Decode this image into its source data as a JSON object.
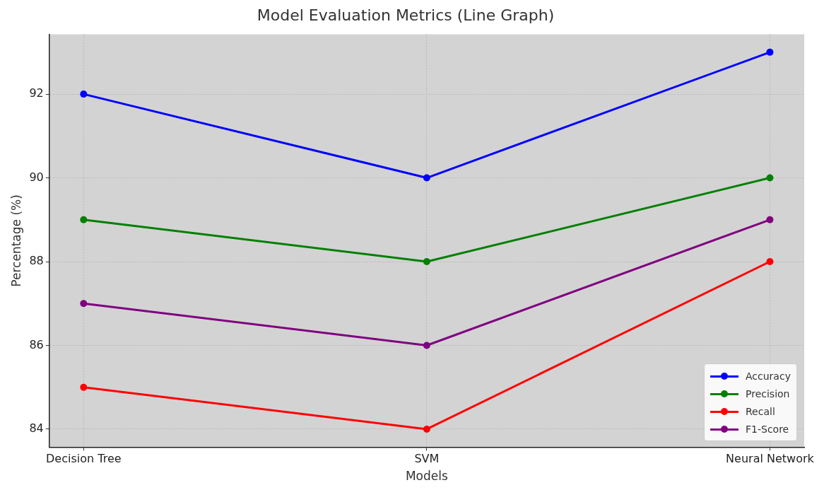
{
  "chart_data": {
    "type": "line",
    "title": "Model Evaluation Metrics (Line Graph)",
    "xlabel": "Models",
    "ylabel": "Percentage (%)",
    "categories": [
      "Decision Tree",
      "SVM",
      "Neural Network"
    ],
    "series": [
      {
        "name": "Accuracy",
        "color": "#0000ff",
        "values": [
          92,
          90,
          93
        ]
      },
      {
        "name": "Precision",
        "color": "#008000",
        "values": [
          89,
          88,
          90
        ]
      },
      {
        "name": "Recall",
        "color": "#ff0000",
        "values": [
          85,
          84,
          88
        ]
      },
      {
        "name": "F1-Score",
        "color": "#800080",
        "values": [
          87,
          86,
          89
        ]
      }
    ],
    "ylim": [
      83.57,
      93.43
    ],
    "yticks": [
      84,
      86,
      88,
      90,
      92
    ],
    "grid": true,
    "legend": "bottom right",
    "marker": "circle",
    "line_style": "solid"
  }
}
